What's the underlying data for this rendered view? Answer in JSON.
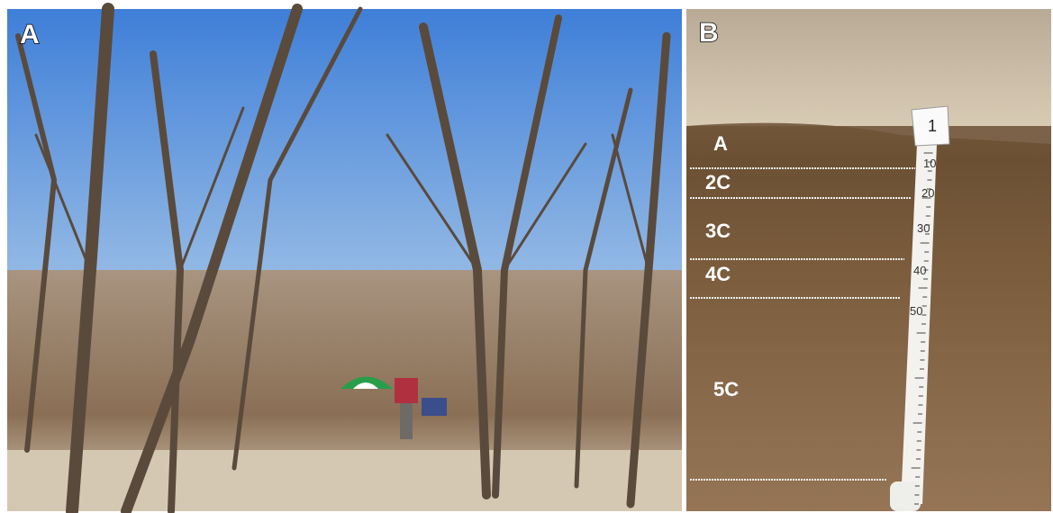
{
  "panels": [
    {
      "label": "A"
    },
    {
      "label": "B",
      "horizons": [
        "A",
        "2C",
        "3C",
        "4C",
        "5C"
      ],
      "tape": {
        "tag": "1",
        "marks": [
          10,
          20,
          30,
          40,
          50
        ]
      }
    }
  ]
}
